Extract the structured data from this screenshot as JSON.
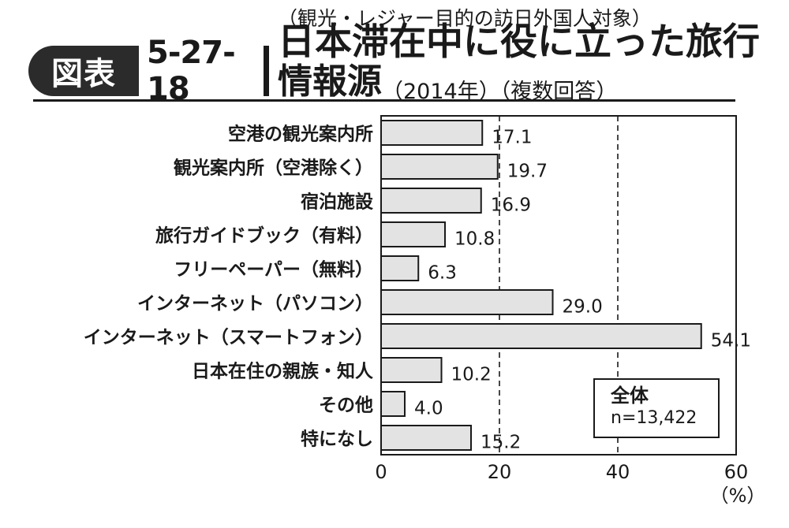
{
  "header": {
    "badge_label": "図表",
    "figure_number": "5-27-18",
    "subtitle": "（観光・レジャー目的の訪日外国人対象）",
    "title_line1": "日本滞在中に役に立った旅行",
    "title_line2": "情報源",
    "title_note": "（2014年）（複数回答）"
  },
  "legend": {
    "title": "全体",
    "n": "n=13,422"
  },
  "chart_data": {
    "type": "bar",
    "orientation": "horizontal",
    "categories": [
      "空港の観光案内所",
      "観光案内所（空港除く）",
      "宿泊施設",
      "旅行ガイドブック（有料）",
      "フリーペーパー（無料）",
      "インターネット（パソコン）",
      "インターネット（スマートフォン）",
      "日本在住の親族・知人",
      "その他",
      "特になし"
    ],
    "values": [
      17.1,
      19.7,
      16.9,
      10.8,
      6.3,
      29.0,
      54.1,
      10.2,
      4.0,
      15.2
    ],
    "value_labels": [
      "17.1",
      "19.7",
      "16.9",
      "10.8",
      "6.3",
      "29.0",
      "54.1",
      "10.2",
      "4.0",
      "15.2"
    ],
    "xlim": [
      0,
      60
    ],
    "xticks": [
      "0",
      "20",
      "40",
      "60"
    ],
    "unit_label": "（%）",
    "grid": "dashed vertical lines at 20 and 40",
    "bar_fill": "#e3e3e3",
    "bar_stroke": "#1a1a1a"
  }
}
